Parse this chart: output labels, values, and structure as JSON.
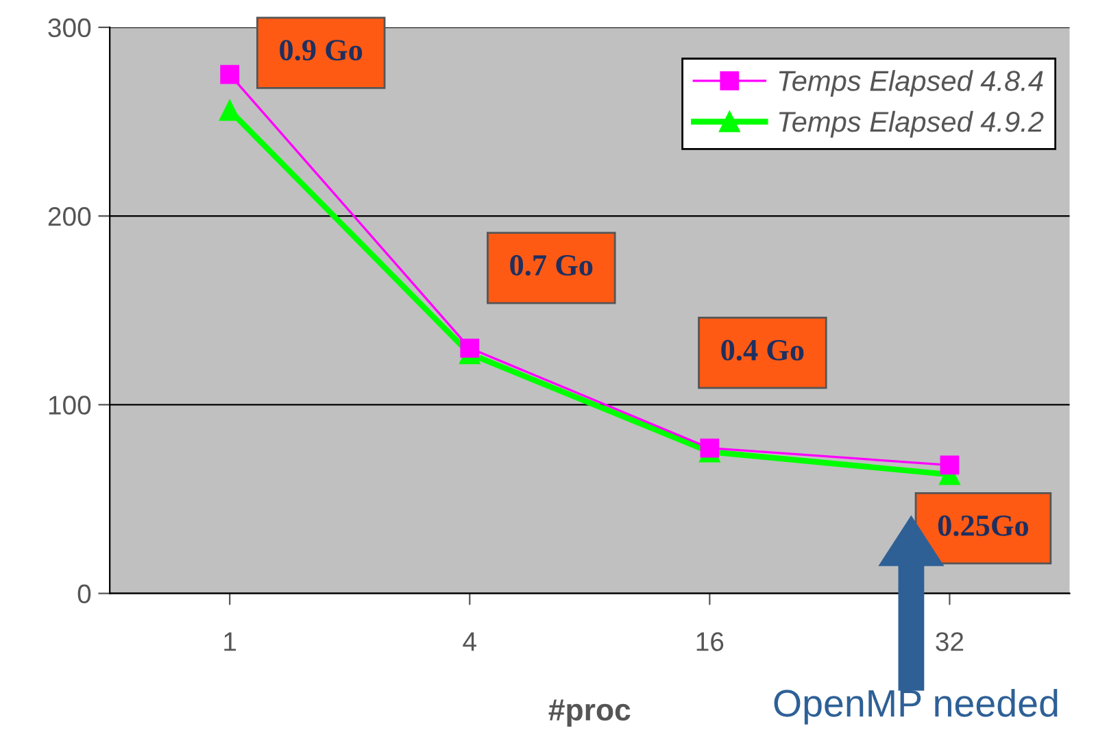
{
  "chart_data": {
    "type": "line",
    "xlabel": "#proc",
    "categories": [
      "1",
      "4",
      "16",
      "32"
    ],
    "series": [
      {
        "name": "Temps Elapsed 4.8.4",
        "color": "#ff00ff",
        "values": [
          275,
          130,
          77,
          68
        ],
        "marker": "square"
      },
      {
        "name": "Temps Elapsed 4.9.2",
        "color": "#00ff00",
        "values": [
          256,
          127,
          75,
          63
        ],
        "marker": "triangle"
      }
    ],
    "ylim": [
      0,
      300
    ],
    "yticks": [
      0,
      100,
      200,
      300
    ],
    "grid": "y",
    "legend": "top right",
    "annotations": [
      "0.9 Go",
      "0.7 Go",
      "0.4 Go",
      "0.25Go",
      "OpenMP needed"
    ]
  }
}
